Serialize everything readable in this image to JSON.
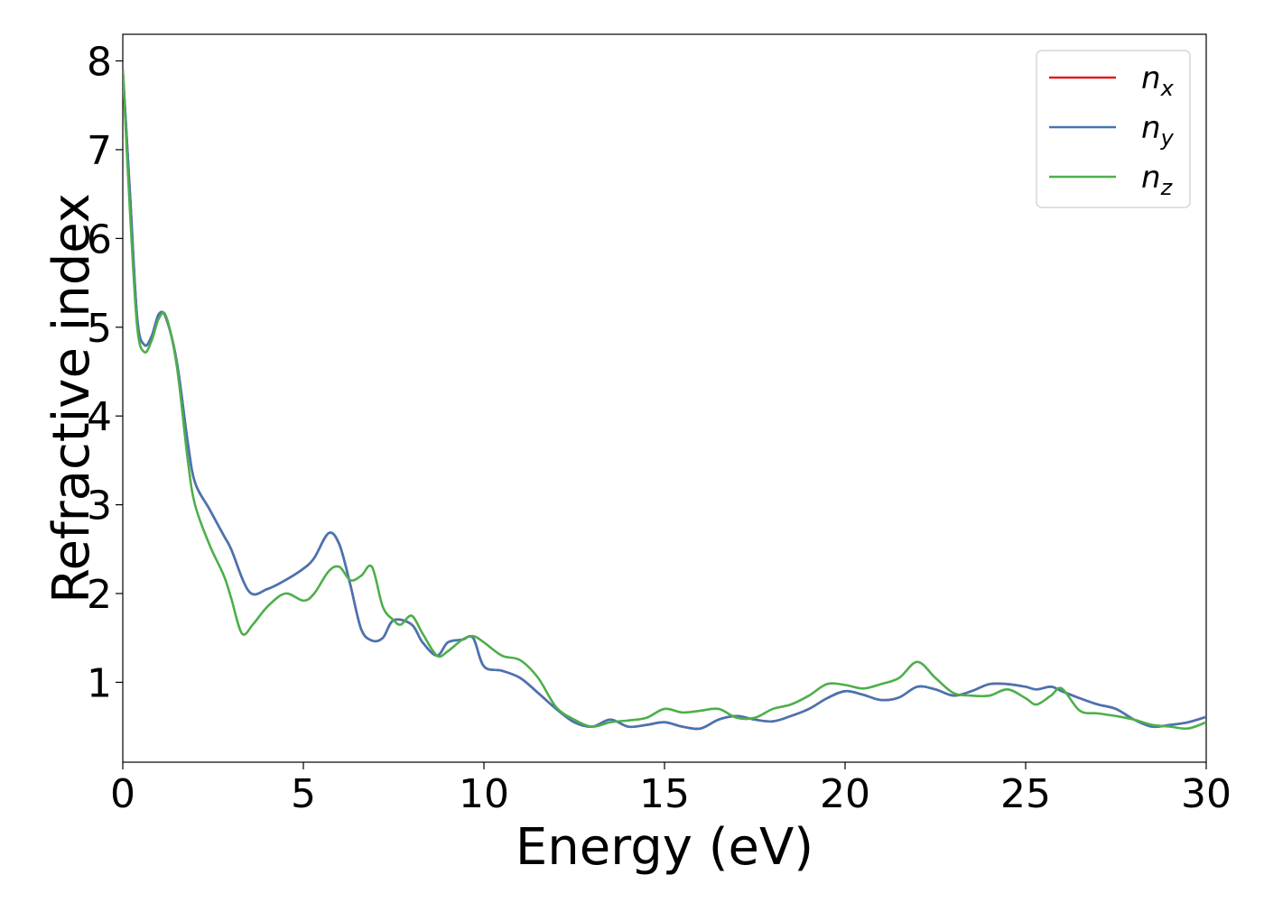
{
  "chart_data": {
    "type": "line",
    "title": "",
    "xlabel": "Energy (eV)",
    "ylabel": "Refractive index",
    "xlim": [
      0,
      30
    ],
    "ylim": [
      0.1,
      8.3
    ],
    "xticks": [
      0,
      5,
      10,
      15,
      20,
      25,
      30
    ],
    "yticks": [
      1,
      2,
      3,
      4,
      5,
      6,
      7,
      8
    ],
    "grid": false,
    "legend_position": "top-right",
    "series": [
      {
        "name": "n",
        "subscript": "x",
        "color": "#e41a1c",
        "x": [
          0,
          0.2,
          0.4,
          0.6,
          0.8,
          1.0,
          1.2,
          1.5,
          1.8,
          2.0,
          2.4,
          2.8,
          3.0,
          3.5,
          4.0,
          4.5,
          5.0,
          5.3,
          5.7,
          6.0,
          6.3,
          6.6,
          6.9,
          7.2,
          7.5,
          8.0,
          8.3,
          8.7,
          9.0,
          9.4,
          9.7,
          10.0,
          10.5,
          11.0,
          11.5,
          12.0,
          12.5,
          13.0,
          13.5,
          14.0,
          14.5,
          15.0,
          15.5,
          16.0,
          16.5,
          17.0,
          17.5,
          18.0,
          18.5,
          19.0,
          19.5,
          20.0,
          20.5,
          21.0,
          21.5,
          22.0,
          22.5,
          23.0,
          23.5,
          24.0,
          24.5,
          25.0,
          25.3,
          25.7,
          26.0,
          26.5,
          27.0,
          27.5,
          28.0,
          28.5,
          29.0,
          29.5,
          30.0
        ],
        "values": [
          7.9,
          6.5,
          5.1,
          4.8,
          4.9,
          5.15,
          5.1,
          4.6,
          3.7,
          3.25,
          2.95,
          2.65,
          2.5,
          2.02,
          2.05,
          2.15,
          2.28,
          2.4,
          2.68,
          2.55,
          2.1,
          1.6,
          1.47,
          1.5,
          1.7,
          1.65,
          1.45,
          1.3,
          1.45,
          1.48,
          1.5,
          1.18,
          1.13,
          1.05,
          0.88,
          0.7,
          0.55,
          0.5,
          0.58,
          0.5,
          0.52,
          0.55,
          0.5,
          0.48,
          0.58,
          0.62,
          0.58,
          0.56,
          0.62,
          0.7,
          0.82,
          0.9,
          0.86,
          0.8,
          0.83,
          0.95,
          0.92,
          0.85,
          0.9,
          0.98,
          0.98,
          0.95,
          0.92,
          0.95,
          0.9,
          0.82,
          0.75,
          0.7,
          0.58,
          0.5,
          0.52,
          0.55,
          0.61
        ]
      },
      {
        "name": "n",
        "subscript": "y",
        "color": "#4575b4",
        "x": [
          0,
          0.2,
          0.4,
          0.6,
          0.8,
          1.0,
          1.2,
          1.5,
          1.8,
          2.0,
          2.4,
          2.8,
          3.0,
          3.5,
          4.0,
          4.5,
          5.0,
          5.3,
          5.7,
          6.0,
          6.3,
          6.6,
          6.9,
          7.2,
          7.5,
          8.0,
          8.3,
          8.7,
          9.0,
          9.4,
          9.7,
          10.0,
          10.5,
          11.0,
          11.5,
          12.0,
          12.5,
          13.0,
          13.5,
          14.0,
          14.5,
          15.0,
          15.5,
          16.0,
          16.5,
          17.0,
          17.5,
          18.0,
          18.5,
          19.0,
          19.5,
          20.0,
          20.5,
          21.0,
          21.5,
          22.0,
          22.5,
          23.0,
          23.5,
          24.0,
          24.5,
          25.0,
          25.3,
          25.7,
          26.0,
          26.5,
          27.0,
          27.5,
          28.0,
          28.5,
          29.0,
          29.5,
          30.0
        ],
        "values": [
          7.9,
          6.5,
          5.1,
          4.8,
          4.9,
          5.15,
          5.1,
          4.6,
          3.7,
          3.25,
          2.95,
          2.65,
          2.5,
          2.02,
          2.05,
          2.15,
          2.28,
          2.4,
          2.68,
          2.55,
          2.1,
          1.6,
          1.47,
          1.5,
          1.7,
          1.65,
          1.45,
          1.3,
          1.45,
          1.48,
          1.5,
          1.18,
          1.13,
          1.05,
          0.88,
          0.7,
          0.55,
          0.5,
          0.58,
          0.5,
          0.52,
          0.55,
          0.5,
          0.48,
          0.58,
          0.62,
          0.58,
          0.56,
          0.62,
          0.7,
          0.82,
          0.9,
          0.86,
          0.8,
          0.83,
          0.95,
          0.92,
          0.85,
          0.9,
          0.98,
          0.98,
          0.95,
          0.92,
          0.95,
          0.9,
          0.82,
          0.75,
          0.7,
          0.58,
          0.5,
          0.52,
          0.55,
          0.61
        ]
      },
      {
        "name": "n",
        "subscript": "z",
        "color": "#4daf4a",
        "x": [
          0,
          0.2,
          0.4,
          0.6,
          0.8,
          1.0,
          1.2,
          1.5,
          1.8,
          2.0,
          2.4,
          2.8,
          3.0,
          3.3,
          3.6,
          4.0,
          4.5,
          5.0,
          5.3,
          5.7,
          6.0,
          6.3,
          6.6,
          6.9,
          7.2,
          7.5,
          7.7,
          8.0,
          8.3,
          8.7,
          9.0,
          9.4,
          9.7,
          10.0,
          10.5,
          11.0,
          11.5,
          12.0,
          12.5,
          13.0,
          13.5,
          14.0,
          14.5,
          15.0,
          15.5,
          16.0,
          16.5,
          17.0,
          17.5,
          18.0,
          18.5,
          19.0,
          19.5,
          20.0,
          20.5,
          21.0,
          21.5,
          22.0,
          22.5,
          23.0,
          23.5,
          24.0,
          24.5,
          25.0,
          25.3,
          25.7,
          26.0,
          26.5,
          27.0,
          27.5,
          28.0,
          28.5,
          29.0,
          29.5,
          30.0
        ],
        "values": [
          7.9,
          6.3,
          5.0,
          4.72,
          4.85,
          5.1,
          5.12,
          4.55,
          3.5,
          3.0,
          2.55,
          2.2,
          1.95,
          1.55,
          1.65,
          1.85,
          2.0,
          1.92,
          2.0,
          2.25,
          2.3,
          2.15,
          2.2,
          2.3,
          1.85,
          1.7,
          1.65,
          1.75,
          1.55,
          1.3,
          1.35,
          1.48,
          1.52,
          1.45,
          1.3,
          1.25,
          1.05,
          0.72,
          0.58,
          0.5,
          0.55,
          0.57,
          0.6,
          0.7,
          0.66,
          0.68,
          0.7,
          0.6,
          0.6,
          0.7,
          0.75,
          0.85,
          0.98,
          0.97,
          0.93,
          0.98,
          1.05,
          1.23,
          1.05,
          0.88,
          0.85,
          0.85,
          0.92,
          0.82,
          0.75,
          0.85,
          0.93,
          0.68,
          0.65,
          0.62,
          0.58,
          0.52,
          0.5,
          0.48,
          0.55
        ]
      }
    ]
  }
}
